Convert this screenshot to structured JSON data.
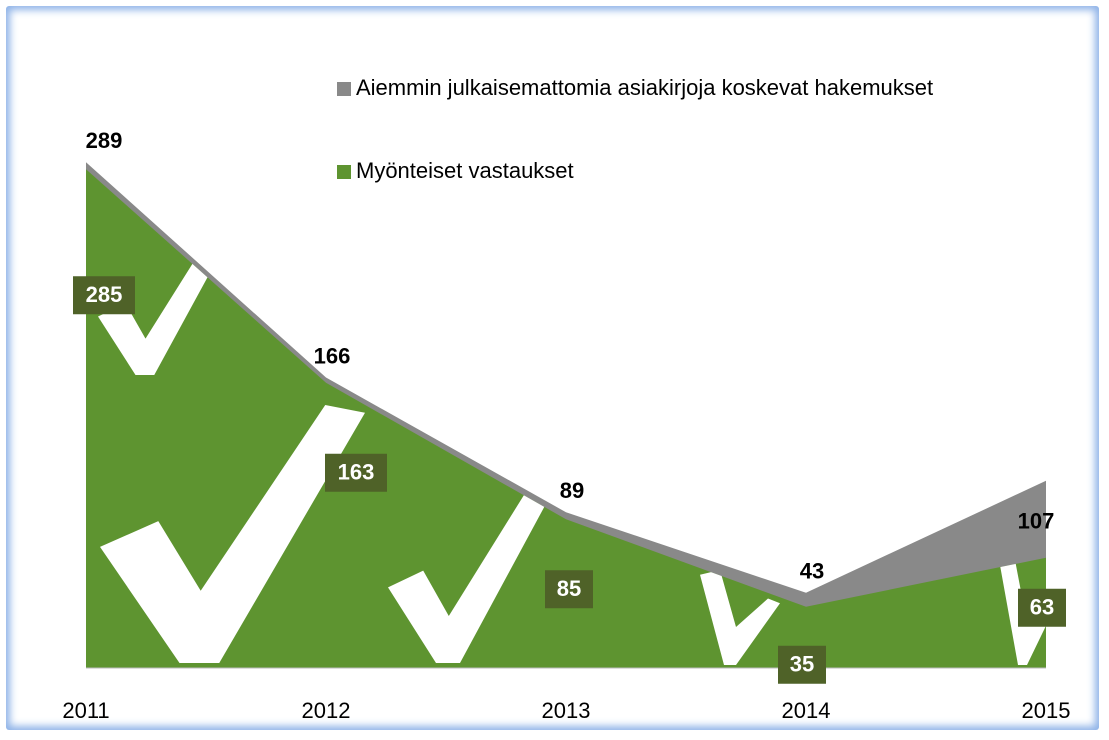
{
  "chart_data": {
    "type": "area",
    "categories": [
      "2011",
      "2012",
      "2013",
      "2014",
      "2015"
    ],
    "series": [
      {
        "name": "Aiemmin julkaisemattomia asiakirjoja koskevat hakemukset",
        "color": "#898989",
        "values": [
          289,
          166,
          89,
          43,
          107
        ]
      },
      {
        "name": "Myönteiset vastaukset",
        "color": "#5e9430",
        "values": [
          285,
          163,
          85,
          35,
          63
        ]
      }
    ],
    "ylim": [
      0,
      300
    ]
  }
}
